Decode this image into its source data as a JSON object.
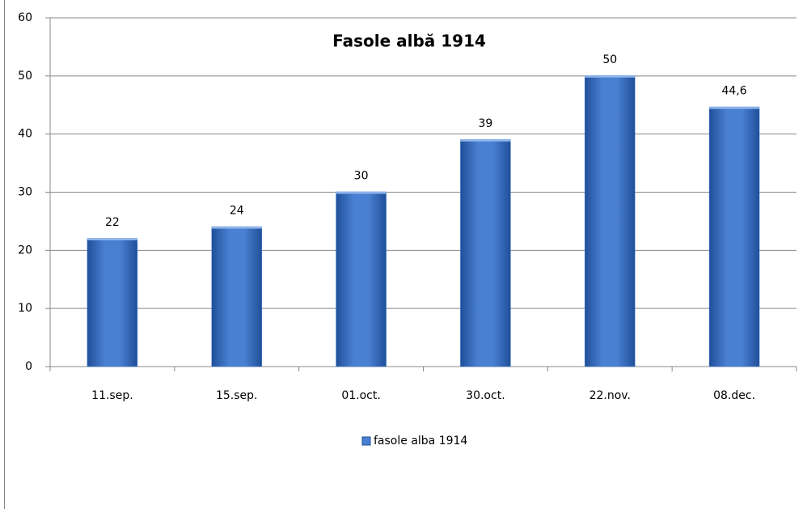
{
  "chart_data": {
    "type": "bar",
    "title": "Fasole albă 1914",
    "categories": [
      "11.sep.",
      "15.sep.",
      "01.oct.",
      "30.oct.",
      "22.nov.",
      "08.dec."
    ],
    "series": [
      {
        "name": "fasole alba 1914",
        "color": "#4a80d2",
        "values": [
          22,
          24,
          30,
          39,
          50,
          44.6
        ],
        "value_labels": [
          "22",
          "24",
          "30",
          "39",
          "50",
          "44,6"
        ]
      }
    ],
    "ylim": [
      0,
      60
    ],
    "yticks": [
      0,
      10,
      20,
      30,
      40,
      50,
      60
    ],
    "grid": true,
    "legend": "bottom"
  }
}
